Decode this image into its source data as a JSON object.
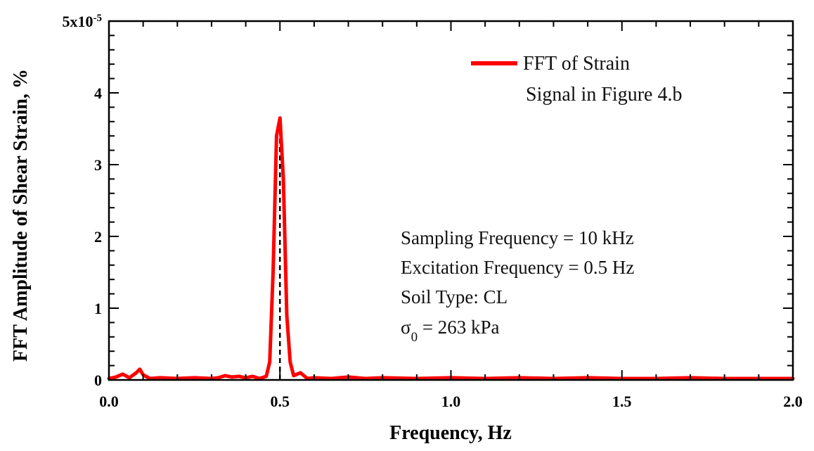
{
  "chart_data": {
    "type": "line",
    "xlabel": "Frequency, Hz",
    "ylabel": "FFT Amplitude of Shear Strain, %",
    "xlim": [
      0,
      2
    ],
    "ylim": [
      0,
      5
    ],
    "x_ticks": [
      0,
      0.5,
      1,
      1.5,
      2
    ],
    "x_tick_labels": [
      "0.0",
      "0.5",
      "1.0",
      "1.5",
      "2.0"
    ],
    "y_ticks": [
      0,
      1,
      2,
      3,
      4,
      5
    ],
    "y_tick_labels": [
      "0",
      "1",
      "2",
      "3",
      "4",
      "5x10"
    ],
    "y_scale_exponent": "-5",
    "grid": false,
    "legend_position": "top-right",
    "series": [
      {
        "name": "FFT of Strain",
        "name_line2": "Signal in Figure 4.b",
        "color": "#ff0000",
        "x": [
          0,
          0.02,
          0.04,
          0.06,
          0.08,
          0.09,
          0.1,
          0.12,
          0.15,
          0.2,
          0.25,
          0.3,
          0.32,
          0.34,
          0.36,
          0.38,
          0.4,
          0.42,
          0.44,
          0.46,
          0.47,
          0.48,
          0.49,
          0.5,
          0.51,
          0.52,
          0.53,
          0.54,
          0.56,
          0.58,
          0.6,
          0.65,
          0.7,
          0.75,
          0.8,
          0.9,
          1.0,
          1.1,
          1.2,
          1.3,
          1.4,
          1.5,
          1.6,
          1.7,
          1.8,
          1.9,
          2.0
        ],
        "y": [
          0.02,
          0.04,
          0.08,
          0.03,
          0.1,
          0.15,
          0.07,
          0.02,
          0.03,
          0.02,
          0.03,
          0.02,
          0.03,
          0.06,
          0.04,
          0.05,
          0.03,
          0.05,
          0.02,
          0.05,
          0.25,
          1.5,
          3.4,
          3.65,
          2.8,
          0.9,
          0.25,
          0.06,
          0.1,
          0.02,
          0.03,
          0.02,
          0.04,
          0.02,
          0.03,
          0.02,
          0.03,
          0.02,
          0.03,
          0.02,
          0.03,
          0.02,
          0.02,
          0.03,
          0.02,
          0.02,
          0.02
        ]
      }
    ],
    "reference_line": {
      "x": 0.5,
      "y_top": 3.65,
      "style": "dashed",
      "color": "#000000"
    },
    "annotations": [
      "Sampling Frequency = 10 kHz",
      "Excitation Frequency = 0.5 Hz",
      "Soil Type: CL"
    ],
    "stress_annotation": {
      "symbol": "σ",
      "subscript": "0",
      "value": " = 263 kPa"
    }
  }
}
